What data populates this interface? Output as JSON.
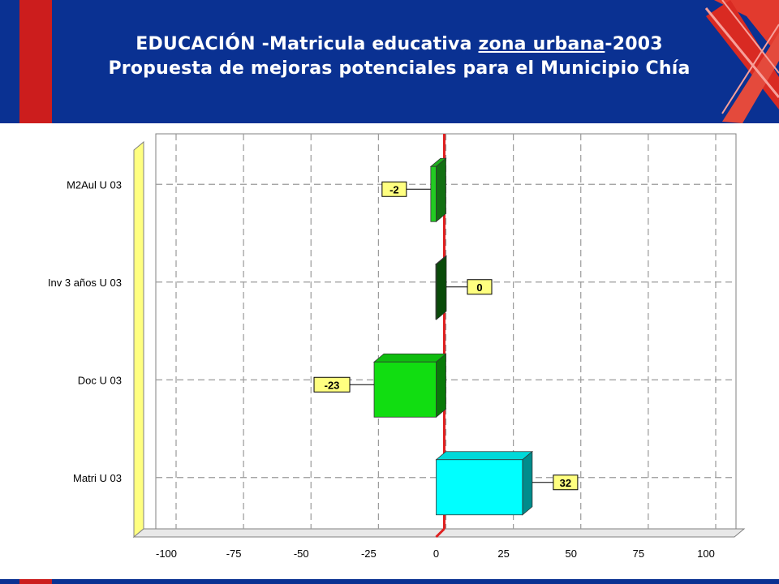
{
  "header": {
    "title_prefix": "EDUCACIÓN -Matricula educativa ",
    "title_underlined": "zona urbana",
    "title_suffix": "-2003",
    "subtitle": "Propuesta de mejoras potenciales para el Municipio Chía"
  },
  "colors": {
    "header_bg": "#0a3192",
    "accent_red": "#cc1d1d",
    "zero_line": "#e02020",
    "wall_yellow": "#ffff80"
  },
  "chart_data": {
    "type": "bar",
    "orientation": "horizontal",
    "title": "",
    "xlabel": "",
    "ylabel": "",
    "xlim": [
      -100,
      100
    ],
    "xticks": [
      -100,
      -75,
      -50,
      -25,
      0,
      25,
      50,
      75,
      100
    ],
    "grid": true,
    "categories": [
      "M2Aul U 03",
      "Inv 3 años U 03",
      "Doc U 03",
      "Matri U 03"
    ],
    "values": [
      -2,
      0,
      -23,
      32
    ],
    "data_labels": [
      "-2",
      "0",
      "-23",
      "32"
    ],
    "bar_colors": [
      "#22cc22",
      "#118811",
      "#11dd11",
      "#00ffff"
    ]
  }
}
